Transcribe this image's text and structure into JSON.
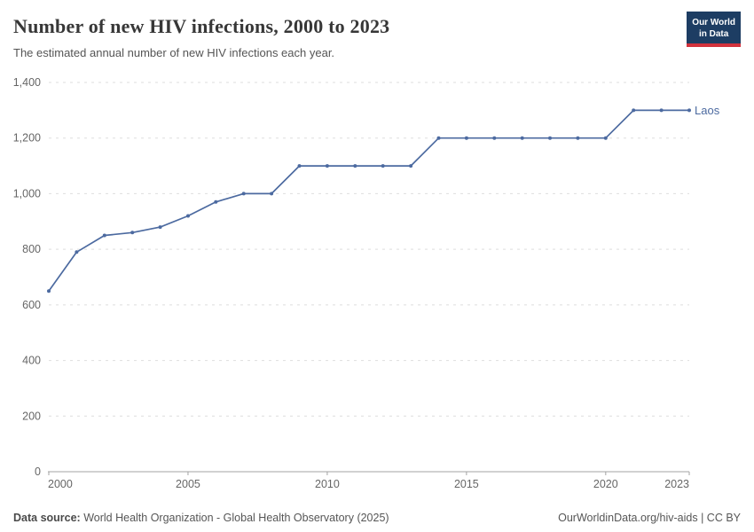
{
  "logo": {
    "line1": "Our World",
    "line2": "in Data"
  },
  "chart_data": {
    "type": "line",
    "title": "Number of new HIV infections, 2000 to 2023",
    "subtitle": "The estimated annual number of new HIV infections each year.",
    "xlabel": "",
    "ylabel": "",
    "x": [
      2000,
      2001,
      2002,
      2003,
      2004,
      2005,
      2006,
      2007,
      2008,
      2009,
      2010,
      2011,
      2012,
      2013,
      2014,
      2015,
      2016,
      2017,
      2018,
      2019,
      2020,
      2021,
      2022,
      2023
    ],
    "series": [
      {
        "name": "Laos",
        "color": "#4c6aa0",
        "values": [
          650,
          790,
          850,
          860,
          880,
          920,
          970,
          1000,
          1000,
          1100,
          1100,
          1100,
          1100,
          1100,
          1200,
          1200,
          1200,
          1200,
          1200,
          1200,
          1200,
          1300,
          1300,
          1300
        ]
      }
    ],
    "ylim": [
      0,
      1400
    ],
    "yticks": [
      0,
      200,
      400,
      600,
      800,
      1000,
      1200,
      1400
    ],
    "ytick_labels": [
      "0",
      "200",
      "400",
      "600",
      "800",
      "1,000",
      "1,200",
      "1,400"
    ],
    "xticks": [
      2000,
      2005,
      2010,
      2015,
      2020,
      2023
    ],
    "grid": "horizontal-dashed",
    "legend_position": "end-of-line-label",
    "entity_label": "Laos"
  },
  "footer": {
    "datasource_label": "Data source:",
    "datasource_text": " World Health Organization - Global Health Observatory (2025)",
    "link_text": "OurWorldinData.org/hiv-aids | CC BY"
  },
  "colors": {
    "line": "#4c6aa0",
    "grid": "#dedede",
    "axis": "#a3a3a3",
    "tick_text": "#666666",
    "logo_bg": "#1d3d63",
    "logo_accent": "#d2323c"
  }
}
